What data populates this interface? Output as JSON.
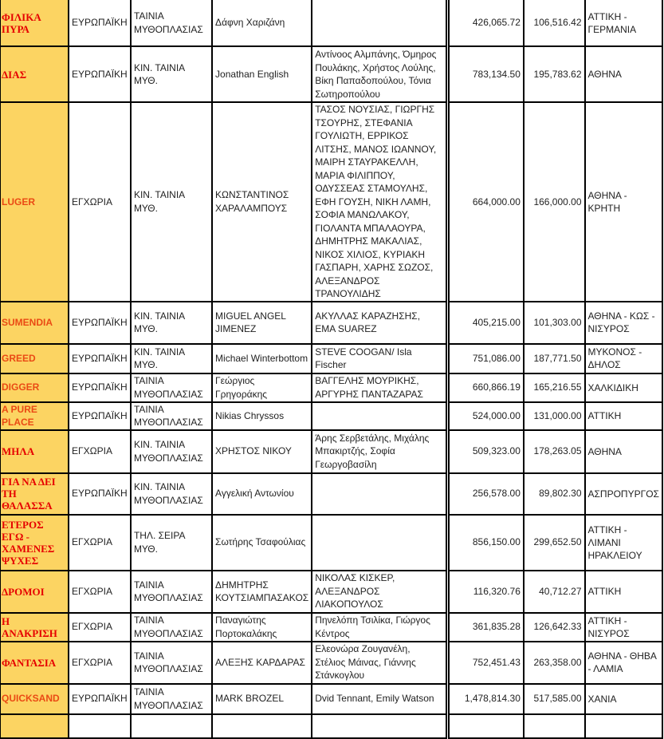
{
  "colors": {
    "title_bg": "#fcd462",
    "title_text_greek": "#e60000",
    "title_text_latin": "#ea4a14",
    "grid": "#000000"
  },
  "rows": [
    {
      "title": "ΦΙΛΙΚΑ ΠΥΡΑ",
      "script": "greek",
      "origin": "ΕΥΡΩΠΑΪΚΗ",
      "type": "ΤΑΙΝΙΑ ΜΥΘΟΠΛΑΣΙΑΣ",
      "director": "Δάφνη Χαριζάνη",
      "cast": "",
      "budget": "426,065.72",
      "rebate": "106,516.42",
      "location": "ΑΤΤΙΚΗ - ΓΕΡΜΑΝΙΑ"
    },
    {
      "title": "ΔΙΑΣ",
      "script": "greek",
      "origin": "ΕΥΡΩΠΑΪΚΗ",
      "type": "ΚΙΝ. ΤΑΙΝΙΑ ΜΥΘ.",
      "director": "Jonathan English",
      "cast": "Αντίνοος Αλμπάνης, Όμηρος Πουλάκης, Χρήστος Λούλης, Βίκη Παπαδοπούλου, Τόνια Σωτηροπούλου",
      "budget": "783,134.50",
      "rebate": "195,783.62",
      "location": "ΑΘΗΝΑ"
    },
    {
      "title": "LUGER",
      "script": "latin",
      "origin": "ΕΓΧΩΡΙΑ",
      "type": "ΚΙΝ. ΤΑΙΝΙΑ ΜΥΘ.",
      "director": "ΚΩΝΣΤΑΝΤΙΝΟΣ ΧΑΡΑΛΑΜΠΟΥΣ",
      "cast": "ΤΑΣΟΣ ΝΟΥΣΙΑΣ, ΓΙΩΡΓΗΣ ΤΣΟΥΡΗΣ, ΣΤΕΦΑΝΙΑ ΓΟΥΛΙΩΤΗ, ΕΡΡΙΚΟΣ ΛΙΤΣΗΣ, ΜΑΝΟΣ ΙΩΑΝΝΟΥ, ΜΑΙΡΗ ΣΤΑΥΡΑΚΕΛΛΗ, ΜΑΡΙΑ ΦΙΛΙΠΠΟΥ, ΟΔΥΣΣΕΑΣ ΣΤΑΜΟΥΛΗΣ, ΕΦΗ ΓΟΥΣΗ, ΝΙΚΗ ΛΑΜΗ, ΣΟΦΙΑ ΜΑΝΩΛΑΚΟΥ, ΓΙΟΛΑΝΤΑ ΜΠΑΛΑΟΥΡΑ, ΔΗΜΗΤΡΗΣ ΜΑΚΑΛΙΑΣ, ΝΙΚΟΣ ΧΙΛΙΟΣ, ΚΥΡΙΑΚΗ ΓΑΣΠΑΡΗ, ΧΑΡΗΣ ΣΩΖΟΣ, ΑΛΕΞΑΝΔΡΟΣ ΤΡΑΝΟΥΛΙΔΗΣ",
      "budget": "664,000.00",
      "rebate": "166,000.00",
      "location": "ΑΘΗΝΑ - ΚΡΗΤΗ"
    },
    {
      "title": "SUMENDIA",
      "script": "latin",
      "origin": "ΕΥΡΩΠΑΪΚΗ",
      "type": "ΚΙΝ. ΤΑΙΝΙΑ ΜΥΘ.",
      "director": "MIGUEL ANGEL JIMENEZ",
      "cast": "ΑΚΥΛΛΑΣ ΚΑΡΑΖΗΣΗΣ, ΕΜΑ SUAREZ",
      "budget": "405,215.00",
      "rebate": "101,303.00",
      "location": "ΑΘΗΝΑ - ΚΩΣ - ΝΙΣΥΡΟΣ"
    },
    {
      "title": "GREED",
      "script": "latin",
      "origin": "ΕΥΡΩΠΑΪΚΗ",
      "type": "ΚΙΝ. ΤΑΙΝΙΑ ΜΥΘ.",
      "director": "Michael Winterbottom",
      "cast": "STEVE COOGAN/ Isla Fischer",
      "budget": "751,086.00",
      "rebate": "187,771.50",
      "location": "ΜΥΚΟΝΟΣ - ΔΗΛΟΣ"
    },
    {
      "title": "DIGGER",
      "script": "latin",
      "origin": "ΕΥΡΩΠΑΪΚΗ",
      "type": "ΤΑΙΝΙΑ ΜΥΘΟΠΛΑΣΙΑΣ",
      "director": "Γεώργιος Γρηγοράκης",
      "cast": "ΒΑΓΓΕΛΗΣ ΜΟΥΡΙΚΗΣ, ΑΡΓΥΡΗΣ ΠΑΝΤΑΖΑΡΑΣ",
      "budget": "660,866.19",
      "rebate": "165,216.55",
      "location": "ΧΑΛΚΙΔΙΚΗ"
    },
    {
      "title": "A PURE PLACE",
      "script": "latin",
      "origin": "ΕΥΡΩΠΑΪΚΗ",
      "type": "ΤΑΙΝΙΑ ΜΥΘΟΠΛΑΣΙΑΣ",
      "director": "Nikias Chryssos",
      "cast": "",
      "budget": "524,000.00",
      "rebate": "131,000.00",
      "location": "ΑΤΤΙΚΗ"
    },
    {
      "title": "ΜΗΛΑ",
      "script": "greek",
      "origin": "ΕΓΧΩΡΙΑ",
      "type": "ΚΙΝ. ΤΑΙΝΙΑ ΜΥΘΟΠΛΑΣΙΑΣ",
      "director": "ΧΡΗΣΤΟΣ ΝΙΚΟΥ",
      "cast": "Άρης Σερβετάλης, Μιχάλης Μπακιρτζής, Σοφία Γεωργοβασίλη",
      "budget": "509,323.00",
      "rebate": "178,263.05",
      "location": "ΑΘΗΝΑ"
    },
    {
      "title": "ΓΙΑ ΝΑ ΔΕΙ ΤΗ ΘΑΛΑΣΣΑ",
      "script": "greek",
      "origin": "ΕΥΡΩΠΑΪΚΗ",
      "type": "ΚΙΝ. ΤΑΙΝΙΑ ΜΥΘΟΠΛΑΣΙΑΣ",
      "director": "Αγγελική Αντωνίου",
      "cast": "",
      "budget": "256,578.00",
      "rebate": "89,802.30",
      "location": "ΑΣΠΡΟΠΥΡΓΟΣ"
    },
    {
      "title": "ΕΤΕΡΟΣ ΕΓΩ - ΧΑΜΕΝΕΣ ΨΥΧΕΣ",
      "script": "greek",
      "origin": "ΕΓΧΩΡΙΑ",
      "type": "ΤΗΛ. ΣΕΙΡΑ ΜΥΘ.",
      "director": "Σωτήρης Τσαφούλιας",
      "cast": "",
      "budget": "856,150.00",
      "rebate": "299,652.50",
      "location": "ΑΤΤΙΚΗ - ΛΙΜΑΝΙ ΗΡΑΚΛΕΙΟΥ"
    },
    {
      "title": "ΔΡΟΜΟΙ",
      "script": "greek",
      "origin": "ΕΓΧΩΡΙΑ",
      "type": "ΤΑΙΝΙΑ ΜΥΘΟΠΛΑΣΙΑΣ",
      "director": "ΔΗΜΗΤΡΗΣ ΚΟΥΤΣΙΑΜΠΑΣΑΚΟΣ",
      "cast": "ΝΙΚΟΛΑΣ ΚΙΣΚΕΡ, ΑΛΕΞΑΝΔΡΟΣ ΛΙΑΚΟΠΟΥΛΟΣ",
      "budget": "116,320.76",
      "rebate": "40,712.27",
      "location": "ΑΤΤΙΚΗ"
    },
    {
      "title": "Η ΑΝΑΚΡΙΣΗ",
      "script": "greek",
      "origin": "ΕΓΧΩΡΙΑ",
      "type": "ΤΑΙΝΙΑ ΜΥΘΟΠΛΑΣΙΑΣ",
      "director": "Παναγιώτης Πορτοκαλάκης",
      "cast": "Πηνελόπη Τσιλίκα, Γιώργος Κέντρος",
      "budget": "361,835.28",
      "rebate": "126,642.33",
      "location": "ΑΤΤΙΚΗ - ΝΙΣΥΡΟΣ"
    },
    {
      "title": "ΦΑΝΤΑΣΙΑ",
      "script": "greek",
      "origin": "ΕΓΧΩΡΙΑ",
      "type": "ΤΑΙΝΙΑ ΜΥΘΟΠΛΑΣΙΑΣ",
      "director": "ΑΛΕΞΗΣ ΚΑΡΔΑΡΑΣ",
      "cast": "Ελεονώρα Ζουγανέλη, Στέλιος Μάινας, Γιάννης Στάνκογλου",
      "budget": "752,451.43",
      "rebate": "263,358.00",
      "location": "ΑΘΗΝΑ - ΘΗΒΑ - ΛΑΜΙΑ"
    },
    {
      "title": "QUICKSAND",
      "script": "latin",
      "origin": "ΕΥΡΩΠΑΪΚΗ",
      "type": "ΤΑΙΝΙΑ ΜΥΘΟΠΛΑΣΙΑΣ",
      "director": "MARK BROZEL",
      "cast": "Dvid Tennant, Emily Watson",
      "budget": "1,478,814.30",
      "rebate": "517,585.00",
      "location": "ΧΑΝΙΑ"
    }
  ]
}
